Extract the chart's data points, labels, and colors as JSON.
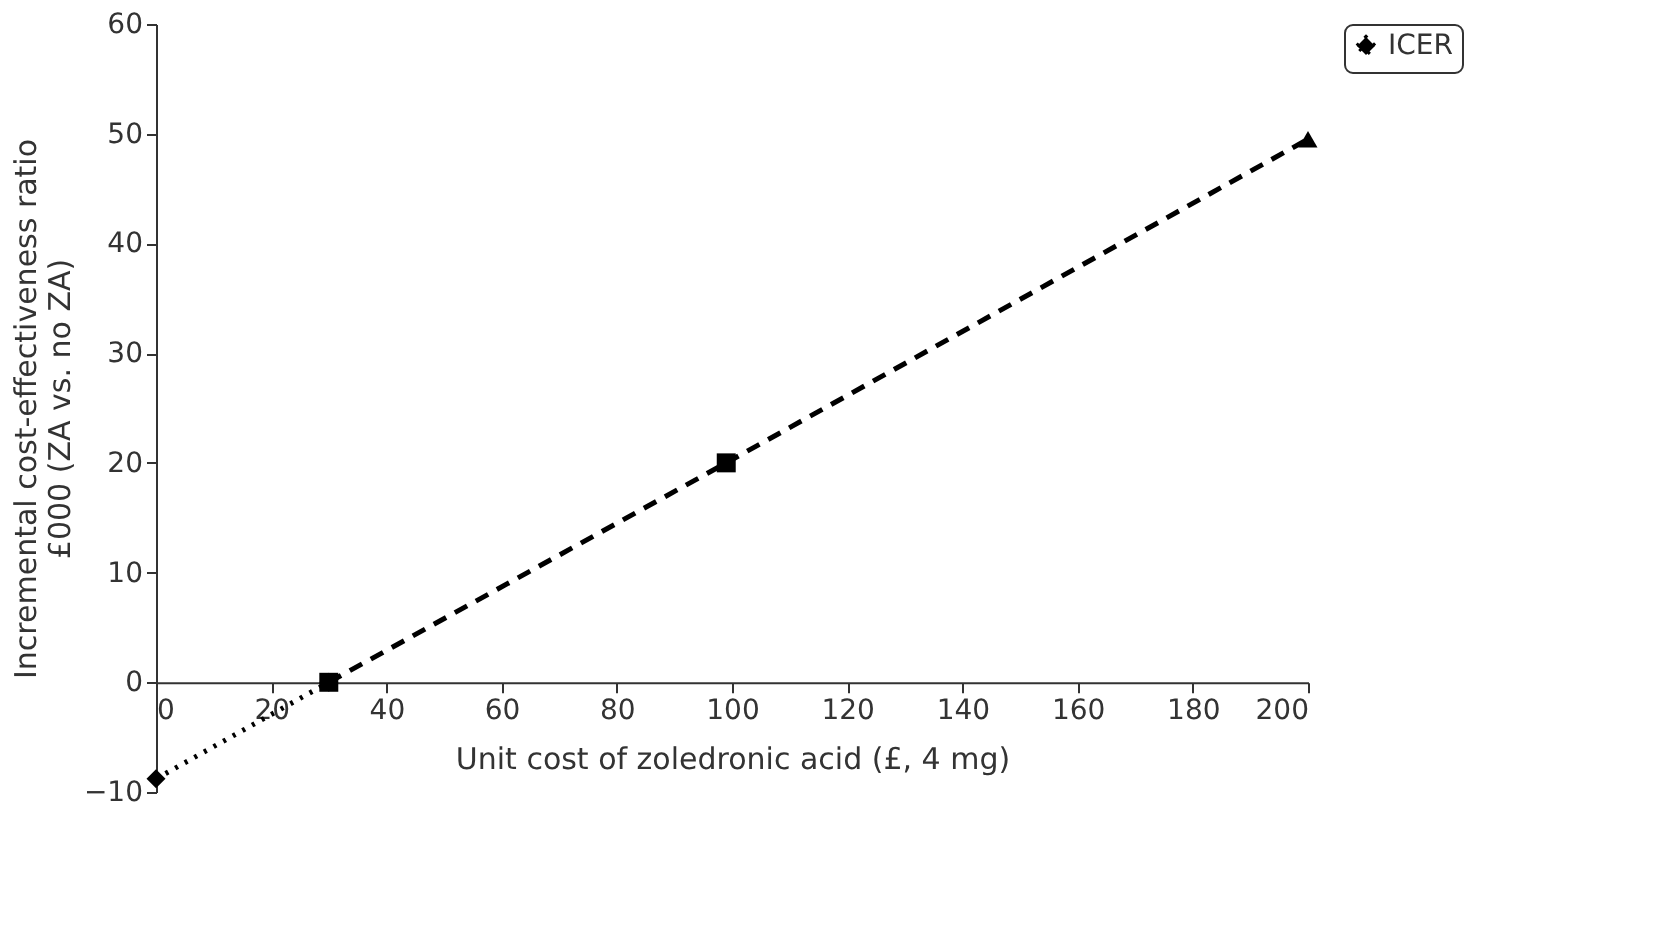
{
  "chart_data": {
    "type": "line",
    "xlabel": "Unit cost of zoledronic acid (£, 4 mg)",
    "ylabel": "Incremental cost-effectiveness ratio\n£000 (ZA vs. no ZA)",
    "series": [
      {
        "name": "ICER",
        "color": "#000000",
        "x": [
          0,
          30
        ],
        "values": [
          -8.8,
          0
        ],
        "line_style": "dotted",
        "marker": "diamond"
      },
      {
        "color": "#000000",
        "x": [
          30,
          99
        ],
        "values": [
          0,
          20
        ],
        "line_style": "dashed",
        "marker": "square"
      },
      {
        "color": "#000000",
        "x": [
          99,
          200
        ],
        "values": [
          20,
          49.5
        ],
        "line_style": "dashed",
        "marker": "none"
      },
      {
        "type": "scatter",
        "color": "#000000",
        "x": [
          200
        ],
        "values": [
          49.5
        ],
        "marker": "triangle"
      }
    ],
    "xlim": [
      0,
      200
    ],
    "xticks": [
      0,
      20,
      40,
      60,
      80,
      100,
      120,
      140,
      160,
      180,
      200
    ],
    "ylim": [
      -10,
      60
    ],
    "yticks": [
      {
        "value": -10,
        "label": "−10"
      },
      0,
      10,
      20,
      30,
      40,
      50,
      60
    ],
    "grid": false,
    "legend": "right"
  }
}
